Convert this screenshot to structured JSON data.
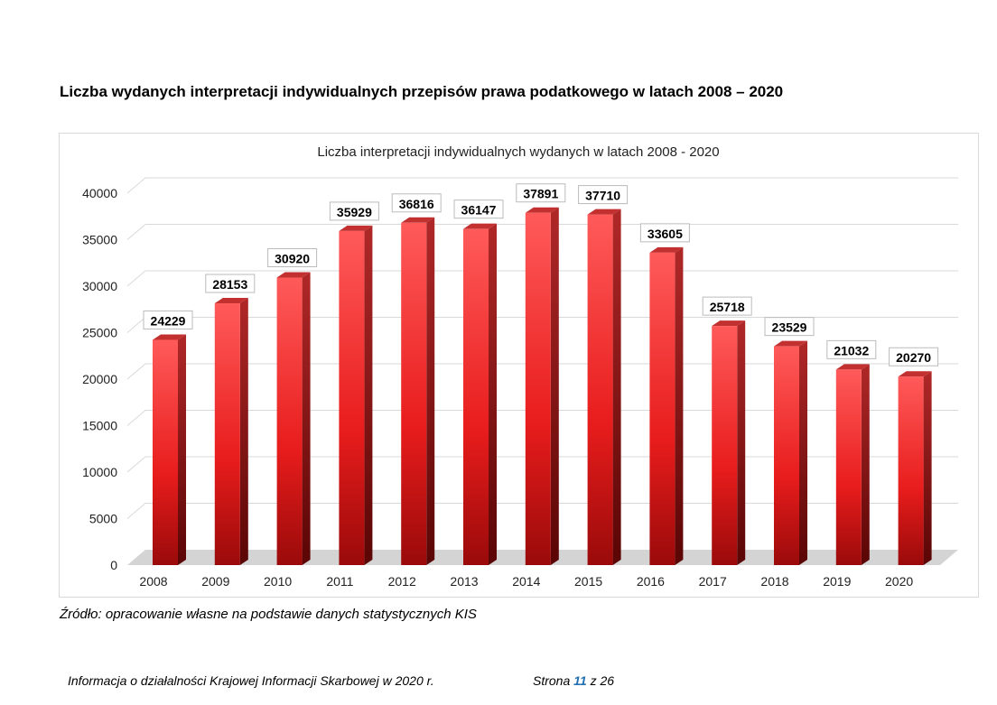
{
  "heading": "Liczba wydanych interpretacji indywidualnych przepisów prawa podatkowego w latach  2008 – 2020",
  "source": "Źródło: opracowanie własne na podstawie danych statystycznych KIS",
  "footer": {
    "left": "Informacja o działalności Krajowej Informacji Skarbowej w 2020 r.",
    "page_prefix": "Strona",
    "page": "11",
    "page_sep": "z",
    "total": "26"
  },
  "chart_data": {
    "type": "bar",
    "title": "Liczba interpretacji indywidualnych wydanych w latach 2008 - 2020",
    "categories": [
      "2008",
      "2009",
      "2010",
      "2011",
      "2012",
      "2013",
      "2014",
      "2015",
      "2016",
      "2017",
      "2018",
      "2019",
      "2020"
    ],
    "values": [
      24229,
      28153,
      30920,
      35929,
      36816,
      36147,
      37891,
      37710,
      33605,
      25718,
      23529,
      21032,
      20270
    ],
    "ylim": [
      0,
      40000
    ],
    "yticks": [
      0,
      5000,
      10000,
      15000,
      20000,
      25000,
      30000,
      35000,
      40000
    ],
    "grid": true,
    "style": "3d",
    "bar_color": "#e8272b",
    "legend": "none"
  }
}
